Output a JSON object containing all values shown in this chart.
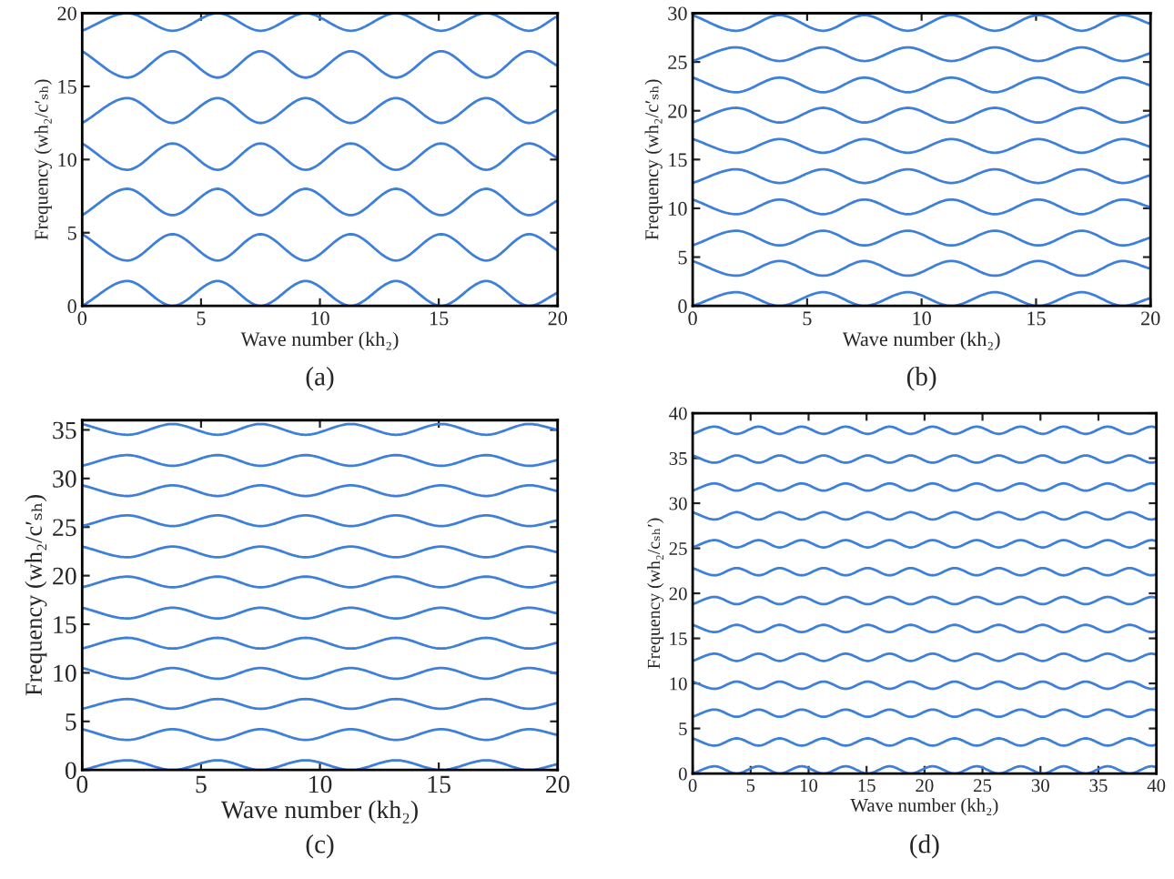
{
  "chart_data": [
    {
      "type": "line",
      "xlabel": "Wave number (kh₂)",
      "ylabel": "Frequency (wh₂/c′ₛₕ)",
      "annotations": [
        "(a)"
      ],
      "xlim": [
        0,
        20
      ],
      "ylim": [
        0,
        20
      ],
      "xticks": [
        0,
        5,
        10,
        15,
        20
      ],
      "yticks": [
        0,
        5,
        10,
        15,
        20
      ],
      "grid": false,
      "x": [
        0,
        1.9,
        3.8,
        5.7,
        7.5,
        9.4,
        11.3,
        13.2,
        15.1,
        17.0,
        18.8,
        20
      ],
      "series": [
        {
          "color": "#3d7fd9",
          "values": [
            0,
            1.7,
            0,
            1.7,
            0,
            1.7,
            0,
            1.7,
            0,
            1.7,
            0,
            0.9
          ]
        },
        {
          "color": "#3d7fd9",
          "values": [
            4.9,
            3.1,
            4.9,
            3.1,
            4.9,
            3.1,
            4.9,
            3.1,
            4.9,
            3.1,
            4.9,
            3.8
          ]
        },
        {
          "color": "#3d7fd9",
          "values": [
            6.2,
            8.0,
            6.2,
            8.0,
            6.2,
            8.0,
            6.2,
            8.0,
            6.2,
            8.0,
            6.2,
            7.2
          ]
        },
        {
          "color": "#3d7fd9",
          "values": [
            11.1,
            9.3,
            11.1,
            9.3,
            11.1,
            9.3,
            11.1,
            9.3,
            11.1,
            9.3,
            11.1,
            10.1
          ]
        },
        {
          "color": "#3d7fd9",
          "values": [
            12.5,
            14.2,
            12.5,
            14.2,
            12.5,
            14.2,
            12.5,
            14.2,
            12.5,
            14.2,
            12.5,
            13.4
          ]
        },
        {
          "color": "#3d7fd9",
          "values": [
            17.4,
            15.6,
            17.4,
            15.6,
            17.4,
            15.6,
            17.4,
            15.6,
            17.4,
            15.6,
            17.4,
            16.4
          ]
        },
        {
          "color": "#3d7fd9",
          "values": [
            18.8,
            20,
            18.8,
            20,
            18.8,
            20,
            18.8,
            20,
            18.8,
            20,
            18.8,
            19.8
          ]
        }
      ]
    },
    {
      "type": "line",
      "xlabel": "Wave number (kh₂)",
      "ylabel": "Frequency (wh₂/c′ₛₕ)",
      "annotations": [
        "(b)"
      ],
      "xlim": [
        0,
        20
      ],
      "ylim": [
        0,
        30
      ],
      "xticks": [
        0,
        5,
        10,
        15,
        20
      ],
      "yticks": [
        0,
        5,
        10,
        15,
        20,
        25,
        30
      ],
      "grid": false,
      "x": [
        0,
        1.9,
        3.8,
        5.7,
        7.5,
        9.4,
        11.3,
        13.2,
        15.1,
        17.0,
        18.8,
        20
      ],
      "series": [
        {
          "color": "#3d7fd9",
          "values": [
            0,
            1.4,
            0,
            1.4,
            0,
            1.4,
            0,
            1.4,
            0,
            1.4,
            0,
            0.8
          ]
        },
        {
          "color": "#3d7fd9",
          "values": [
            4.6,
            3.1,
            4.6,
            3.1,
            4.6,
            3.1,
            4.6,
            3.1,
            4.6,
            3.1,
            4.6,
            3.8
          ]
        },
        {
          "color": "#3d7fd9",
          "values": [
            6.2,
            7.7,
            6.2,
            7.7,
            6.2,
            7.7,
            6.2,
            7.7,
            6.2,
            7.7,
            6.2,
            7.0
          ]
        },
        {
          "color": "#3d7fd9",
          "values": [
            10.9,
            9.4,
            10.9,
            9.4,
            10.9,
            9.4,
            10.9,
            9.4,
            10.9,
            9.4,
            10.9,
            10.1
          ]
        },
        {
          "color": "#3d7fd9",
          "values": [
            12.6,
            14.0,
            12.6,
            14.0,
            12.6,
            14.0,
            12.6,
            14.0,
            12.6,
            14.0,
            12.6,
            13.4
          ]
        },
        {
          "color": "#3d7fd9",
          "values": [
            17.1,
            15.7,
            17.1,
            15.7,
            17.1,
            15.7,
            17.1,
            15.7,
            17.1,
            15.7,
            17.1,
            16.3
          ]
        },
        {
          "color": "#3d7fd9",
          "values": [
            18.8,
            20.3,
            18.8,
            20.3,
            18.8,
            20.3,
            18.8,
            20.3,
            18.8,
            20.3,
            18.8,
            19.6
          ]
        },
        {
          "color": "#3d7fd9",
          "values": [
            23.4,
            21.9,
            23.4,
            21.9,
            23.4,
            21.9,
            23.4,
            21.9,
            23.4,
            21.9,
            23.4,
            22.6
          ]
        },
        {
          "color": "#3d7fd9",
          "values": [
            25.1,
            26.5,
            25.1,
            26.5,
            25.1,
            26.5,
            25.1,
            26.5,
            25.1,
            26.5,
            25.1,
            25.9
          ]
        },
        {
          "color": "#3d7fd9",
          "values": [
            29.8,
            28.2,
            29.8,
            28.2,
            29.8,
            28.2,
            29.8,
            28.2,
            29.8,
            28.2,
            29.8,
            28.9
          ]
        }
      ]
    },
    {
      "type": "line",
      "xlabel": "Wave number (kh₂)",
      "ylabel": "Frequency (wh₂/c′ₛₕ)",
      "annotations": [
        "(c)"
      ],
      "xlim": [
        0,
        20
      ],
      "ylim": [
        0,
        36
      ],
      "xticks": [
        0,
        5,
        10,
        15,
        20
      ],
      "yticks": [
        0,
        5,
        10,
        15,
        20,
        25,
        30,
        35
      ],
      "grid": false,
      "x": [
        0,
        1.9,
        3.8,
        5.7,
        7.5,
        9.4,
        11.3,
        13.2,
        15.1,
        17.0,
        18.8,
        20
      ],
      "series": [
        {
          "color": "#3d7fd9",
          "values": [
            0,
            1.0,
            0,
            1.0,
            0,
            1.0,
            0,
            1.0,
            0,
            1.0,
            0,
            0.6
          ]
        },
        {
          "color": "#3d7fd9",
          "values": [
            4.2,
            3.1,
            4.2,
            3.1,
            4.2,
            3.1,
            4.2,
            3.1,
            4.2,
            3.1,
            4.2,
            3.6
          ]
        },
        {
          "color": "#3d7fd9",
          "values": [
            6.3,
            7.3,
            6.3,
            7.3,
            6.3,
            7.3,
            6.3,
            7.3,
            6.3,
            7.3,
            6.3,
            6.9
          ]
        },
        {
          "color": "#3d7fd9",
          "values": [
            10.5,
            9.4,
            10.5,
            9.4,
            10.5,
            9.4,
            10.5,
            9.4,
            10.5,
            9.4,
            10.5,
            9.9
          ]
        },
        {
          "color": "#3d7fd9",
          "values": [
            12.5,
            13.6,
            12.5,
            13.6,
            12.5,
            13.6,
            12.5,
            13.6,
            12.5,
            13.6,
            12.5,
            13.1
          ]
        },
        {
          "color": "#3d7fd9",
          "values": [
            16.7,
            15.6,
            16.7,
            15.6,
            16.7,
            15.6,
            16.7,
            15.6,
            16.7,
            15.6,
            16.7,
            16.1
          ]
        },
        {
          "color": "#3d7fd9",
          "values": [
            18.8,
            19.9,
            18.8,
            19.9,
            18.8,
            19.9,
            18.8,
            19.9,
            18.8,
            19.9,
            18.8,
            19.4
          ]
        },
        {
          "color": "#3d7fd9",
          "values": [
            23.0,
            21.9,
            23.0,
            21.9,
            23.0,
            21.9,
            23.0,
            21.9,
            23.0,
            21.9,
            23.0,
            22.4
          ]
        },
        {
          "color": "#3d7fd9",
          "values": [
            25.1,
            26.2,
            25.1,
            26.2,
            25.1,
            26.2,
            25.1,
            26.2,
            25.1,
            26.2,
            25.1,
            25.7
          ]
        },
        {
          "color": "#3d7fd9",
          "values": [
            29.3,
            28.2,
            29.3,
            28.2,
            29.3,
            28.2,
            29.3,
            28.2,
            29.3,
            28.2,
            29.3,
            28.7
          ]
        },
        {
          "color": "#3d7fd9",
          "values": [
            31.3,
            32.4,
            31.3,
            32.4,
            31.3,
            32.4,
            31.3,
            32.4,
            31.3,
            32.4,
            31.3,
            31.9
          ]
        },
        {
          "color": "#3d7fd9",
          "values": [
            35.6,
            34.5,
            35.6,
            34.5,
            35.6,
            34.5,
            35.6,
            34.5,
            35.6,
            34.5,
            35.6,
            35.0
          ]
        }
      ]
    },
    {
      "type": "line",
      "xlabel": "Wave number (kh₂)",
      "ylabel": "Frequency (wh₂/cₛₕ′)",
      "annotations": [
        "(d)"
      ],
      "xlim": [
        0,
        40
      ],
      "ylim": [
        0,
        40
      ],
      "xticks": [
        0,
        5,
        10,
        15,
        20,
        25,
        30,
        35,
        40
      ],
      "yticks": [
        0,
        5,
        10,
        15,
        20,
        25,
        30,
        35,
        40
      ],
      "grid": false,
      "x": [
        0,
        1.9,
        3.8,
        5.7,
        7.5,
        9.4,
        11.3,
        13.2,
        15.1,
        17.0,
        18.8,
        20.7,
        22.6,
        24.5,
        26.4,
        28.3,
        30.2,
        32.0,
        33.9,
        35.8,
        37.7,
        39.6,
        40
      ],
      "series": [
        {
          "color": "#3d7fd9",
          "values": [
            0,
            0.8,
            0,
            0.8,
            0,
            0.8,
            0,
            0.8,
            0,
            0.8,
            0,
            0.8,
            0,
            0.8,
            0,
            0.8,
            0,
            0.8,
            0,
            0.8,
            0,
            0.8,
            0.7
          ]
        },
        {
          "color": "#3d7fd9",
          "values": [
            3.9,
            3.1,
            3.9,
            3.1,
            3.9,
            3.1,
            3.9,
            3.1,
            3.9,
            3.1,
            3.9,
            3.1,
            3.9,
            3.1,
            3.9,
            3.1,
            3.9,
            3.1,
            3.9,
            3.1,
            3.9,
            3.1,
            3.2
          ]
        },
        {
          "color": "#3d7fd9",
          "values": [
            6.3,
            7.1,
            6.3,
            7.1,
            6.3,
            7.1,
            6.3,
            7.1,
            6.3,
            7.1,
            6.3,
            7.1,
            6.3,
            7.1,
            6.3,
            7.1,
            6.3,
            7.1,
            6.3,
            7.1,
            6.3,
            7.1,
            7.0
          ]
        },
        {
          "color": "#3d7fd9",
          "values": [
            10.2,
            9.4,
            10.2,
            9.4,
            10.2,
            9.4,
            10.2,
            9.4,
            10.2,
            9.4,
            10.2,
            9.4,
            10.2,
            9.4,
            10.2,
            9.4,
            10.2,
            9.4,
            10.2,
            9.4,
            10.2,
            9.4,
            9.5
          ]
        },
        {
          "color": "#3d7fd9",
          "values": [
            12.5,
            13.3,
            12.5,
            13.3,
            12.5,
            13.3,
            12.5,
            13.3,
            12.5,
            13.3,
            12.5,
            13.3,
            12.5,
            13.3,
            12.5,
            13.3,
            12.5,
            13.3,
            12.5,
            13.3,
            12.5,
            13.3,
            13.2
          ]
        },
        {
          "color": "#3d7fd9",
          "values": [
            16.5,
            15.7,
            16.5,
            15.7,
            16.5,
            15.7,
            16.5,
            15.7,
            16.5,
            15.7,
            16.5,
            15.7,
            16.5,
            15.7,
            16.5,
            15.7,
            16.5,
            15.7,
            16.5,
            15.7,
            16.5,
            15.7,
            15.8
          ]
        },
        {
          "color": "#3d7fd9",
          "values": [
            18.8,
            19.6,
            18.8,
            19.6,
            18.8,
            19.6,
            18.8,
            19.6,
            18.8,
            19.6,
            18.8,
            19.6,
            18.8,
            19.6,
            18.8,
            19.6,
            18.8,
            19.6,
            18.8,
            19.6,
            18.8,
            19.6,
            19.5
          ]
        },
        {
          "color": "#3d7fd9",
          "values": [
            22.8,
            22.0,
            22.8,
            22.0,
            22.8,
            22.0,
            22.8,
            22.0,
            22.8,
            22.0,
            22.8,
            22.0,
            22.8,
            22.0,
            22.8,
            22.0,
            22.8,
            22.0,
            22.8,
            22.0,
            22.8,
            22.0,
            22.1
          ]
        },
        {
          "color": "#3d7fd9",
          "values": [
            25.1,
            25.9,
            25.1,
            25.9,
            25.1,
            25.9,
            25.1,
            25.9,
            25.1,
            25.9,
            25.1,
            25.9,
            25.1,
            25.9,
            25.1,
            25.9,
            25.1,
            25.9,
            25.1,
            25.9,
            25.1,
            25.9,
            25.8
          ]
        },
        {
          "color": "#3d7fd9",
          "values": [
            29.0,
            28.2,
            29.0,
            28.2,
            29.0,
            28.2,
            29.0,
            28.2,
            29.0,
            28.2,
            29.0,
            28.2,
            29.0,
            28.2,
            29.0,
            28.2,
            29.0,
            28.2,
            29.0,
            28.2,
            29.0,
            28.2,
            28.3
          ]
        },
        {
          "color": "#3d7fd9",
          "values": [
            31.4,
            32.2,
            31.4,
            32.2,
            31.4,
            32.2,
            31.4,
            32.2,
            31.4,
            32.2,
            31.4,
            32.2,
            31.4,
            32.2,
            31.4,
            32.2,
            31.4,
            32.2,
            31.4,
            32.2,
            31.4,
            32.2,
            32.1
          ]
        },
        {
          "color": "#3d7fd9",
          "values": [
            35.3,
            34.5,
            35.3,
            34.5,
            35.3,
            34.5,
            35.3,
            34.5,
            35.3,
            34.5,
            35.3,
            34.5,
            35.3,
            34.5,
            35.3,
            34.5,
            35.3,
            34.5,
            35.3,
            34.5,
            35.3,
            34.5,
            34.6
          ]
        },
        {
          "color": "#3d7fd9",
          "values": [
            37.7,
            38.5,
            37.7,
            38.5,
            37.7,
            38.5,
            37.7,
            38.5,
            37.7,
            38.5,
            37.7,
            38.5,
            37.7,
            38.5,
            37.7,
            38.5,
            37.7,
            38.5,
            37.7,
            38.5,
            37.7,
            38.5,
            38.4
          ]
        }
      ]
    }
  ]
}
